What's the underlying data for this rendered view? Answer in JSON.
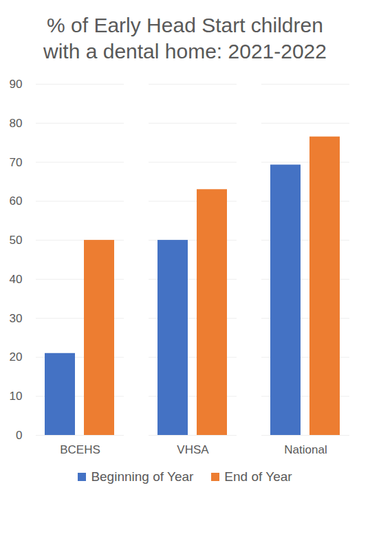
{
  "chart_data": {
    "type": "bar",
    "title": "% of Early Head Start children with a dental home: 2021-2022",
    "categories": [
      "BCEHS",
      "VHSA",
      "National"
    ],
    "series": [
      {
        "name": "Beginning of Year",
        "color": "#4472c4",
        "values": [
          21,
          50,
          69.3
        ]
      },
      {
        "name": "End of Year",
        "color": "#ed7d31",
        "values": [
          50,
          63,
          76.5
        ]
      }
    ],
    "ylim": [
      0,
      90
    ],
    "yticks": [
      0,
      10,
      20,
      30,
      40,
      50,
      60,
      70,
      80,
      90
    ],
    "grid": true,
    "legend": "bottom"
  }
}
